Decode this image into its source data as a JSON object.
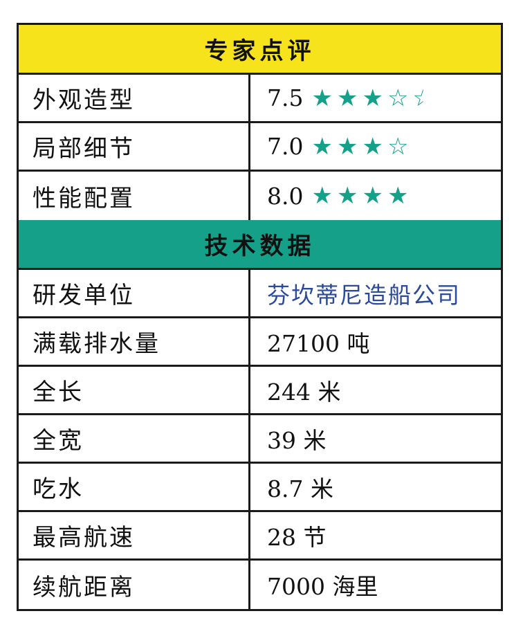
{
  "colors": {
    "review_header": "#f6e31c",
    "tech_header": "#14a089",
    "star": "#14a089",
    "link_text": "#2b4a9b"
  },
  "review": {
    "title": "专家点评",
    "rows": [
      {
        "label": "外观造型",
        "score": "7.5",
        "stars": [
          "full",
          "full",
          "full",
          "empty",
          "half-empty"
        ]
      },
      {
        "label": "局部细节",
        "score": "7.0",
        "stars": [
          "full",
          "full",
          "full",
          "empty"
        ]
      },
      {
        "label": "性能配置",
        "score": "8.0",
        "stars": [
          "full",
          "full",
          "full",
          "full"
        ]
      }
    ]
  },
  "tech": {
    "title": "技术数据",
    "rows": [
      {
        "label": "研发单位",
        "value": "芬坎蒂尼造船公司"
      },
      {
        "label": "满载排水量",
        "value": "27100 吨"
      },
      {
        "label": "全长",
        "value": "244 米"
      },
      {
        "label": "全宽",
        "value": "39 米"
      },
      {
        "label": "吃水",
        "value": "8.7 米"
      },
      {
        "label": "最高航速",
        "value": "28 节"
      },
      {
        "label": "续航距离",
        "value": "7000 海里"
      }
    ]
  }
}
